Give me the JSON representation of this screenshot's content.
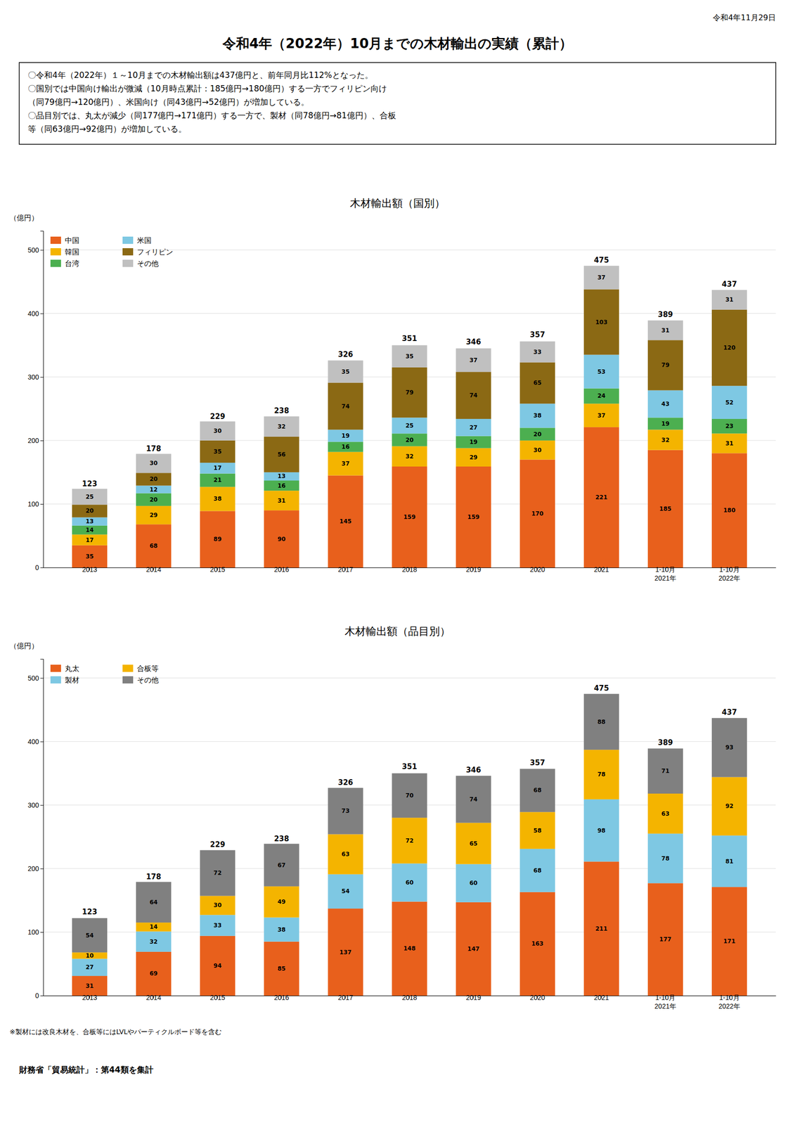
{
  "title": "令和4年（2022年）10月までの木材輸出の実績（累計）",
  "date": "令和4年11月29日",
  "annotations": [
    "〇令和4年（2022年）１～10月までの木材輸出額は437億円と、前年同月比112%となった。",
    "〇国別では中国向け輸出が微減（10月時点累計：185億円→180億円）する一方でフィリピン向け\n（同79億円→120億円）、米国向け（同43億円→52億円）が増加している。",
    "〇品目別では、丸太が減少（同177億円→171億円）する一方で、製材（同78億円→81億円）、合板\n等（同63億円→92億円）が増加している。"
  ],
  "source": "財務省「貿易統計」：第44類を集計",
  "chart_data": [
    {
      "type": "bar",
      "stacked": true,
      "title": "木材輸出額（国別）",
      "ylabel": "（億円）",
      "categories": [
        "2013",
        "2014",
        "2015",
        "2016",
        "2017",
        "2018",
        "2019",
        "2020",
        "2021",
        "1-10月\n2021年",
        "1-10月\n2022年"
      ],
      "series": [
        {
          "name": "中国",
          "color": "#E8601C",
          "values": [
            35,
            68,
            89,
            90,
            145,
            159,
            159,
            170,
            221,
            185,
            180
          ]
        },
        {
          "name": "韓国",
          "color": "#F4B400",
          "values": [
            17,
            29,
            38,
            31,
            37,
            32,
            29,
            30,
            37,
            32,
            31
          ]
        },
        {
          "name": "台湾",
          "color": "#4CAF50",
          "values": [
            14,
            20,
            21,
            16,
            16,
            20,
            19,
            20,
            24,
            19,
            23
          ]
        },
        {
          "name": "米国",
          "color": "#7EC8E3",
          "values": [
            13,
            12,
            17,
            13,
            19,
            25,
            27,
            38,
            53,
            43,
            52
          ]
        },
        {
          "name": "フィリピン",
          "color": "#8B6914",
          "values": [
            20,
            20,
            35,
            56,
            74,
            79,
            74,
            65,
            103,
            79,
            120
          ]
        },
        {
          "name": "その他",
          "color": "#C0C0C0",
          "values": [
            25,
            30,
            30,
            32,
            35,
            35,
            37,
            33,
            37,
            31,
            31
          ]
        }
      ],
      "totals": [
        123,
        178,
        229,
        238,
        326,
        351,
        346,
        357,
        475,
        389,
        437
      ],
      "ylim": [
        0,
        530
      ],
      "yticks": [
        0,
        100,
        200,
        300,
        400,
        500
      ],
      "grid": true,
      "legend": "upper left",
      "data_labels": true
    },
    {
      "type": "bar",
      "stacked": true,
      "title": "木材輸出額（品目別）",
      "ylabel": "（億円）",
      "categories": [
        "2013",
        "2014",
        "2015",
        "2016",
        "2017",
        "2018",
        "2019",
        "2020",
        "2021",
        "1-10月\n2021年",
        "1-10月\n2022年"
      ],
      "series": [
        {
          "name": "丸太",
          "color": "#E8601C",
          "values": [
            31,
            69,
            94,
            85,
            137,
            148,
            147,
            163,
            211,
            177,
            171
          ]
        },
        {
          "name": "製材",
          "color": "#7EC8E3",
          "values": [
            27,
            32,
            33,
            38,
            54,
            60,
            60,
            68,
            98,
            78,
            81
          ]
        },
        {
          "name": "合板等",
          "color": "#F4B400",
          "values": [
            10,
            14,
            30,
            49,
            63,
            72,
            65,
            58,
            78,
            63,
            92
          ]
        },
        {
          "name": "その他",
          "color": "#808080",
          "values": [
            54,
            64,
            72,
            67,
            73,
            70,
            74,
            68,
            88,
            71,
            93
          ]
        }
      ],
      "totals": [
        123,
        178,
        229,
        238,
        326,
        351,
        346,
        357,
        475,
        389,
        437
      ],
      "ylim": [
        0,
        530
      ],
      "yticks": [
        0,
        100,
        200,
        300,
        400,
        500
      ],
      "grid": true,
      "legend": "upper left",
      "data_labels": true,
      "annotations": [
        "※製材には改良木材を、合板等にはLVLやパーティクルボード等を含む"
      ]
    }
  ]
}
